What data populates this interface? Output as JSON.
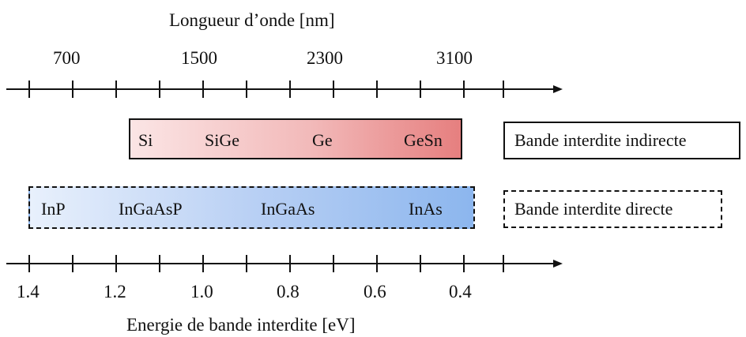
{
  "top_axis": {
    "title": "Longueur d’onde [nm]",
    "tick_labels": [
      "700",
      "1500",
      "2300",
      "3100"
    ]
  },
  "bottom_axis": {
    "title": "Energie de bande interdite [eV]",
    "tick_labels": [
      "1.4",
      "1.2",
      "1.0",
      "0.8",
      "0.6",
      "0.4"
    ]
  },
  "indirect_band": {
    "materials": [
      "Si",
      "SiGe",
      "Ge",
      "GeSn"
    ],
    "gradient_colors": [
      "#fbe5e5",
      "#e67f7f"
    ]
  },
  "direct_band": {
    "materials": [
      "InP",
      "InGaAsP",
      "InGaAs",
      "InAs"
    ],
    "gradient_colors": [
      "#e8f0fc",
      "#8cb6ee"
    ]
  },
  "legend": {
    "indirect": "Bande interdite indirecte",
    "direct": "Bande interdite directe"
  }
}
